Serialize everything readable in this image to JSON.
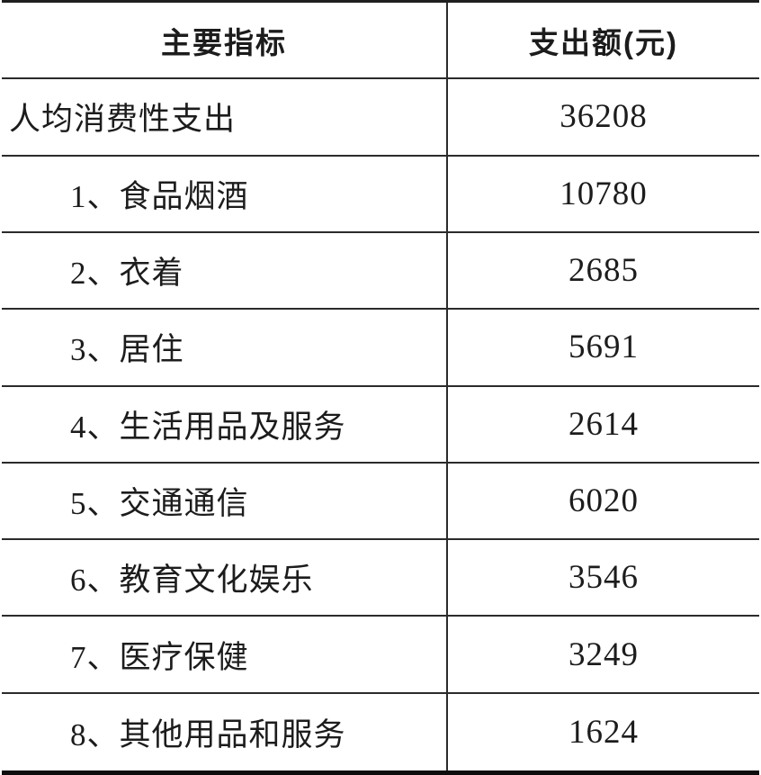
{
  "header": {
    "indicator_label": "主要指标",
    "amount_label": "支出额(元)"
  },
  "rows": [
    {
      "indicator": "人均消费性支出",
      "amount": "36208"
    },
    {
      "indicator": "1、食品烟酒",
      "amount": "10780"
    },
    {
      "indicator": "2、衣着",
      "amount": "2685"
    },
    {
      "indicator": "3、居住",
      "amount": "5691"
    },
    {
      "indicator": "4、生活用品及服务",
      "amount": "2614"
    },
    {
      "indicator": "5、交通通信",
      "amount": "6020"
    },
    {
      "indicator": "6、教育文化娱乐",
      "amount": "3546"
    },
    {
      "indicator": "7、医疗保健",
      "amount": "3249"
    },
    {
      "indicator": "8、其他用品和服务",
      "amount": "1624"
    }
  ],
  "chart_data": {
    "type": "table",
    "columns": [
      "主要指标",
      "支出额(元)"
    ],
    "rows": [
      [
        "人均消费性支出",
        36208
      ],
      [
        "1、食品烟酒",
        10780
      ],
      [
        "2、衣着",
        2685
      ],
      [
        "3、居住",
        5691
      ],
      [
        "4、生活用品及服务",
        2614
      ],
      [
        "5、交通通信",
        6020
      ],
      [
        "6、教育文化娱乐",
        3546
      ],
      [
        "7、医疗保健",
        3249
      ],
      [
        "8、其他用品和服务",
        1624
      ]
    ]
  },
  "colors": {
    "background": "#ffffff",
    "text": "#1c1c1c",
    "grid_line": "#2b2b2b"
  }
}
